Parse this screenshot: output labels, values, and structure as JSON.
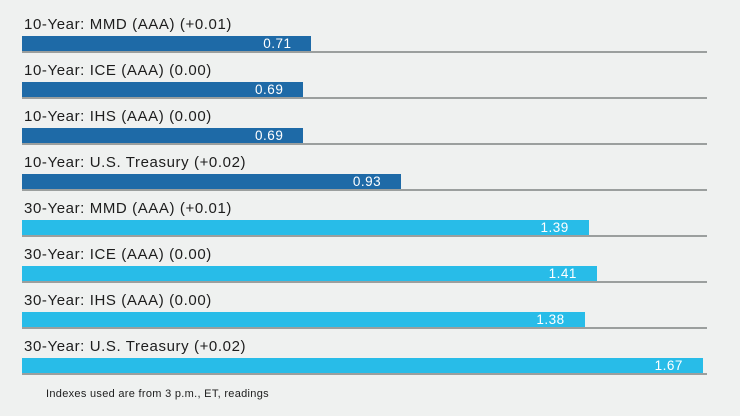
{
  "chart_data": {
    "type": "bar",
    "orientation": "horizontal",
    "title": "",
    "categories": [
      "10-Year: MMD (AAA) (+0.01)",
      "10-Year: ICE (AAA) (0.00)",
      "10-Year: IHS (AAA) (0.00)",
      "10-Year: U.S. Treasury (+0.02)",
      "30-Year: MMD (AAA) (+0.01)",
      "30-Year: ICE (AAA) (0.00)",
      "30-Year: IHS (AAA) (0.00)",
      "30-Year: U.S. Treasury (+0.02)"
    ],
    "values": [
      0.71,
      0.69,
      0.69,
      0.93,
      1.39,
      1.41,
      1.38,
      1.67
    ],
    "series": [
      {
        "name": "10-Year",
        "color": "#1e6aa7",
        "values": [
          0.71,
          0.69,
          0.69,
          0.93
        ]
      },
      {
        "name": "30-Year",
        "color": "#28bce8",
        "values": [
          1.39,
          1.41,
          1.38,
          1.67
        ]
      }
    ],
    "xlim": [
      0,
      1.68
    ],
    "grid": "per-bar baseline only, no axis ticks",
    "legend_position": "none",
    "value_labels_inside_bars": true,
    "footnote": "Indexes used are from 3 p.m., ET, readings"
  },
  "bars": [
    {
      "label": "10-Year: MMD (AAA) (+0.01)",
      "value": "0.71",
      "group": "10-year"
    },
    {
      "label": "10-Year: ICE (AAA) (0.00)",
      "value": "0.69",
      "group": "10-year"
    },
    {
      "label": "10-Year: IHS (AAA) (0.00)",
      "value": "0.69",
      "group": "10-year"
    },
    {
      "label": "10-Year: U.S. Treasury (+0.02)",
      "value": "0.93",
      "group": "10-year"
    },
    {
      "label": "30-Year: MMD (AAA) (+0.01)",
      "value": "1.39",
      "group": "30-year"
    },
    {
      "label": "30-Year: ICE (AAA) (0.00)",
      "value": "1.41",
      "group": "30-year"
    },
    {
      "label": "30-Year: IHS (AAA) (0.00)",
      "value": "1.38",
      "group": "30-year"
    },
    {
      "label": "30-Year: U.S. Treasury (+0.02)",
      "value": "1.67",
      "group": "30-year"
    }
  ],
  "footer": {
    "note": "Indexes used are from 3 p.m., ET, readings"
  },
  "colors": {
    "background": "#eff1f0",
    "bar_10_year": "#1e6aa7",
    "bar_30_year": "#28bce8",
    "baseline": "#9b9f9e",
    "label_text": "#1d1d1d",
    "value_text": "#ffffff"
  }
}
